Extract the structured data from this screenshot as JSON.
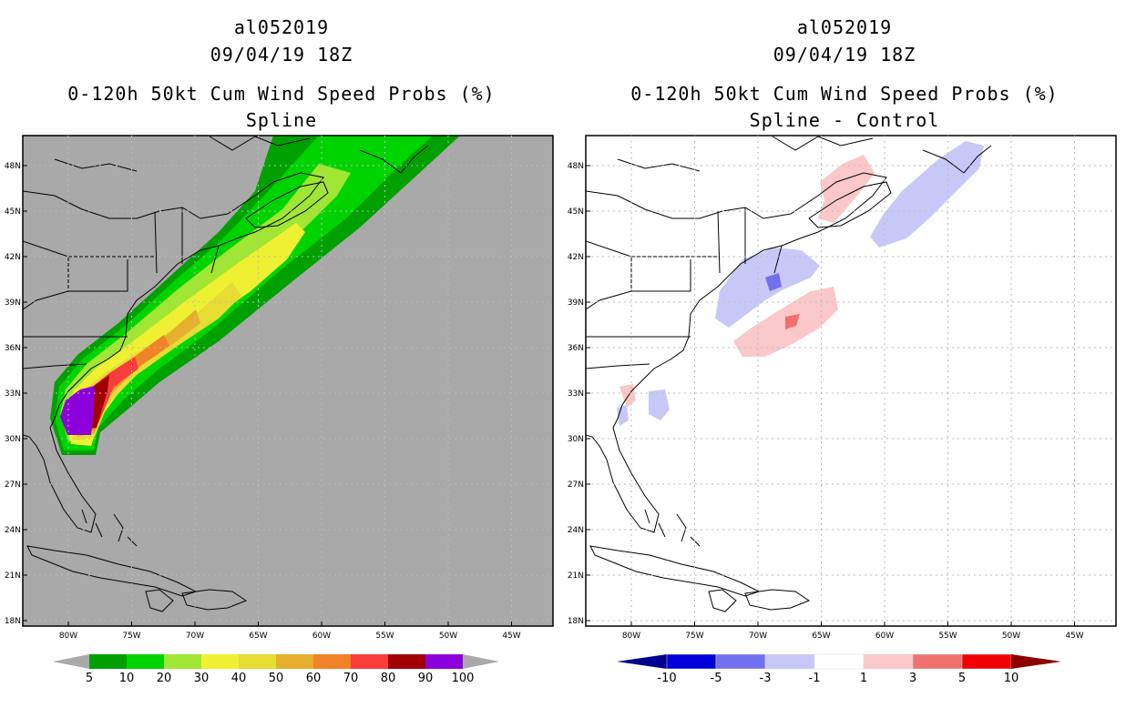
{
  "storm_id": "al052019",
  "datetime": "09/04/19 18Z",
  "product": "0-120h 50kt Cum Wind Speed Probs (%)",
  "panels": [
    {
      "id": "left",
      "subtitle": "Spline",
      "background": "#a9a9a9",
      "lat_labels": [
        "48N",
        "45N",
        "42N",
        "39N",
        "36N",
        "33N",
        "30N",
        "27N",
        "24N",
        "21N",
        "18N"
      ],
      "lon_labels": [
        "80W",
        "75W",
        "70W",
        "65W",
        "60W",
        "55W",
        "50W",
        "45W"
      ],
      "colorbar": {
        "labels": [
          "5",
          "10",
          "20",
          "30",
          "40",
          "50",
          "60",
          "70",
          "80",
          "90",
          "100"
        ],
        "colors": [
          "#00a000",
          "#00d400",
          "#a0e632",
          "#f0f032",
          "#e6dc32",
          "#e6af2d",
          "#f08228",
          "#fa3c3c",
          "#a00000",
          "#8c00dc"
        ],
        "end_color": "#a9a9a9"
      }
    },
    {
      "id": "right",
      "subtitle": "Spline - Control",
      "background": "#ffffff",
      "lat_labels": [
        "48N",
        "45N",
        "42N",
        "39N",
        "36N",
        "33N",
        "30N",
        "27N",
        "24N",
        "21N",
        "18N"
      ],
      "lon_labels": [
        "80W",
        "75W",
        "70W",
        "65W",
        "60W",
        "55W",
        "50W",
        "45W"
      ],
      "colorbar": {
        "labels": [
          "-10",
          "-5",
          "-3",
          "-1",
          "1",
          "3",
          "5",
          "10"
        ],
        "colors": [
          "#0000dc",
          "#7070f0",
          "#c8c8f8",
          "#ffffff",
          "#fac8c8",
          "#f07070",
          "#f00000"
        ],
        "end_low": "#00008c",
        "end_high": "#8c0000"
      }
    }
  ]
}
